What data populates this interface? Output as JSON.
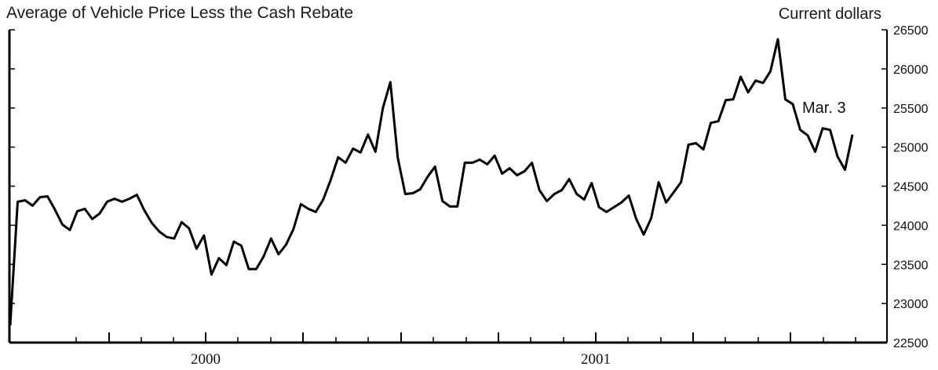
{
  "chart_data": {
    "type": "line",
    "title": "Average of Vehicle Price Less the Cash Rebate",
    "units_label": "Current dollars",
    "xlabel": "",
    "ylabel": "",
    "ylim": [
      22500,
      26500
    ],
    "y_ticks": [
      22500,
      23000,
      23500,
      24000,
      24500,
      25000,
      25500,
      26000,
      26500
    ],
    "x_labels": [
      "2000",
      "2001"
    ],
    "grid": false,
    "legend": "none",
    "annotation": "Mar. 3",
    "series": [
      {
        "values": [
          22720,
          24300,
          24320,
          24250,
          24360,
          24370,
          24200,
          24010,
          23940,
          24180,
          24210,
          24080,
          24150,
          24300,
          24340,
          24300,
          24340,
          24390,
          24190,
          24030,
          23920,
          23850,
          23830,
          24040,
          23960,
          23700,
          23870,
          23370,
          23580,
          23490,
          23790,
          23740,
          23440,
          23440,
          23600,
          23830,
          23630,
          23750,
          23950,
          24270,
          24210,
          24170,
          24330,
          24580,
          24870,
          24800,
          24980,
          24930,
          25160,
          24940,
          25500,
          25830,
          24860,
          24400,
          24410,
          24460,
          24620,
          24750,
          24310,
          24240,
          24240,
          24800,
          24800,
          24840,
          24780,
          24890,
          24660,
          24730,
          24640,
          24690,
          24800,
          24450,
          24310,
          24400,
          24450,
          24590,
          24400,
          24330,
          24540,
          24230,
          24170,
          24230,
          24290,
          24380,
          24080,
          23880,
          24090,
          24550,
          24290,
          24420,
          24550,
          25030,
          25050,
          24970,
          25310,
          25330,
          25600,
          25610,
          25900,
          25700,
          25850,
          25820,
          25970,
          26380,
          25610,
          25550,
          25220,
          25150,
          24940,
          25240,
          25220,
          24880,
          24710,
          25160
        ]
      }
    ]
  }
}
